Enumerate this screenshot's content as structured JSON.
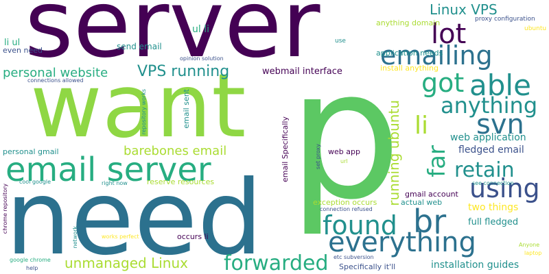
{
  "palette": {
    "dark_purple": "#440154",
    "purple": "#472c7a",
    "indigo": "#3b518b",
    "blue": "#2c718e",
    "teal": "#21908d",
    "green_teal": "#27ad81",
    "green": "#5cc863",
    "light_green": "#8fd744",
    "yellow_green": "#aadc32",
    "yellow": "#fde725"
  },
  "words": [
    {
      "text": "server"
    },
    {
      "text": "p"
    },
    {
      "text": "want"
    },
    {
      "text": "need"
    },
    {
      "text": "email server"
    },
    {
      "text": "lot"
    },
    {
      "text": "emailing"
    },
    {
      "text": "able"
    },
    {
      "text": "got"
    },
    {
      "text": "anything"
    },
    {
      "text": "svn"
    },
    {
      "text": "li"
    },
    {
      "text": "far"
    },
    {
      "text": "retain"
    },
    {
      "text": "using"
    },
    {
      "text": "found"
    },
    {
      "text": "br"
    },
    {
      "text": "everything"
    },
    {
      "text": "forwarded"
    },
    {
      "text": "Linux VPS"
    },
    {
      "text": "VPS running"
    },
    {
      "text": "personal website"
    },
    {
      "text": "unmanaged Linux"
    },
    {
      "text": "barebones email"
    },
    {
      "text": "running ubuntu"
    },
    {
      "text": "webmail interface"
    },
    {
      "text": "web application"
    },
    {
      "text": "fledged email"
    },
    {
      "text": "installation guides"
    },
    {
      "text": "full fledged"
    },
    {
      "text": "two things"
    },
    {
      "text": "ul li"
    },
    {
      "text": "li ul"
    },
    {
      "text": "send email"
    },
    {
      "text": "even need"
    },
    {
      "text": "anything domain"
    },
    {
      "text": "application needs"
    },
    {
      "text": "install anything"
    },
    {
      "text": "proxy configuration"
    },
    {
      "text": "ubuntu"
    },
    {
      "text": "use"
    },
    {
      "text": "opinion solution"
    },
    {
      "text": "connections allowed"
    },
    {
      "text": "repository works"
    },
    {
      "text": "email sent"
    },
    {
      "text": "email Specifically"
    },
    {
      "text": "web app"
    },
    {
      "text": "set proxy"
    },
    {
      "text": "url"
    },
    {
      "text": "personal gmail"
    },
    {
      "text": "reserve resources"
    },
    {
      "text": "cool google"
    },
    {
      "text": "right now"
    },
    {
      "text": "chrome repository"
    },
    {
      "text": "network"
    },
    {
      "text": "works perfect"
    },
    {
      "text": "occurs li"
    },
    {
      "text": "exception occurs"
    },
    {
      "text": "connection refused"
    },
    {
      "text": "actual web"
    },
    {
      "text": "gmail account"
    },
    {
      "text": "see connection"
    },
    {
      "text": "Anyone"
    },
    {
      "text": "laptop"
    },
    {
      "text": "google chrome"
    },
    {
      "text": "help"
    },
    {
      "text": "etc subversion"
    },
    {
      "text": "Specifically it'll"
    }
  ]
}
